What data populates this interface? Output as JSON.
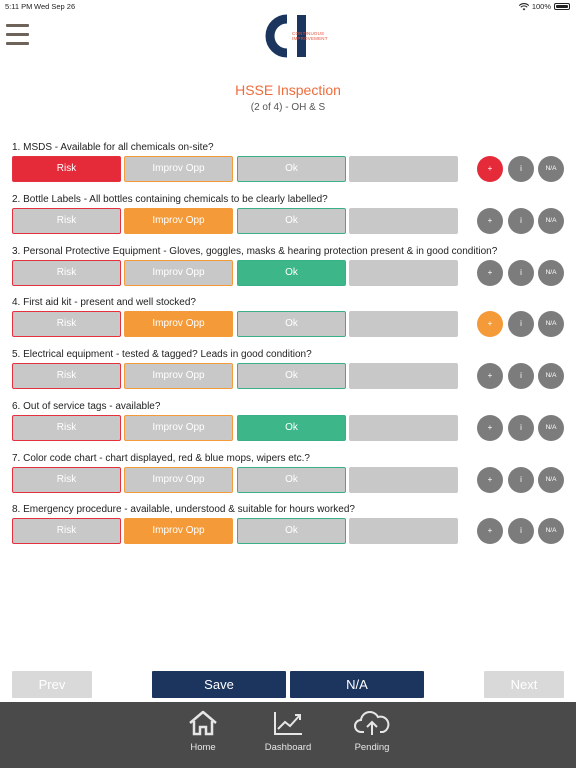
{
  "status_bar": {
    "time": "5:11 PM",
    "date": "Wed Sep 26",
    "battery": "100%"
  },
  "logo": {
    "line1": "CONTINUOUS",
    "line2": "IMPROVEMENT"
  },
  "header": {
    "title": "HSSE Inspection",
    "subtitle": "(2 of 4) - OH & S"
  },
  "option_labels": {
    "risk": "Risk",
    "improv": "Improv Opp",
    "ok": "Ok",
    "na": ""
  },
  "side_labels": {
    "plus": "+",
    "info": "i",
    "na": "N/A"
  },
  "questions": [
    {
      "label": "1. MSDS - Available for all chemicals on-site?",
      "selected": "risk"
    },
    {
      "label": "2. Bottle Labels - All bottles containing chemicals to be clearly labelled?",
      "selected": "improv"
    },
    {
      "label": "3. Personal Protective Equipment - Gloves, goggles, masks & hearing protection present & in good condition?",
      "selected": "ok"
    },
    {
      "label": "4. First aid kit - present and well stocked?",
      "selected": "improv"
    },
    {
      "label": "5. Electrical equipment - tested & tagged? Leads in good condition?",
      "selected": "none"
    },
    {
      "label": "6. Out of service tags - available?",
      "selected": "ok"
    },
    {
      "label": "7. Color code chart - chart displayed, red & blue mops, wipers etc.?",
      "selected": "none"
    },
    {
      "label": "8. Emergency procedure - available, understood & suitable for hours worked?",
      "selected": "improv"
    }
  ],
  "footer": {
    "prev": "Prev",
    "save": "Save",
    "na": "N/A",
    "next": "Next"
  },
  "tabs": [
    {
      "label": "Home"
    },
    {
      "label": "Dashboard"
    },
    {
      "label": "Pending"
    }
  ],
  "colors": {
    "risk": "#e52a3a",
    "improv": "#f59a38",
    "ok": "#3db78a",
    "navy": "#1b355f",
    "title": "#ef6c3b"
  }
}
